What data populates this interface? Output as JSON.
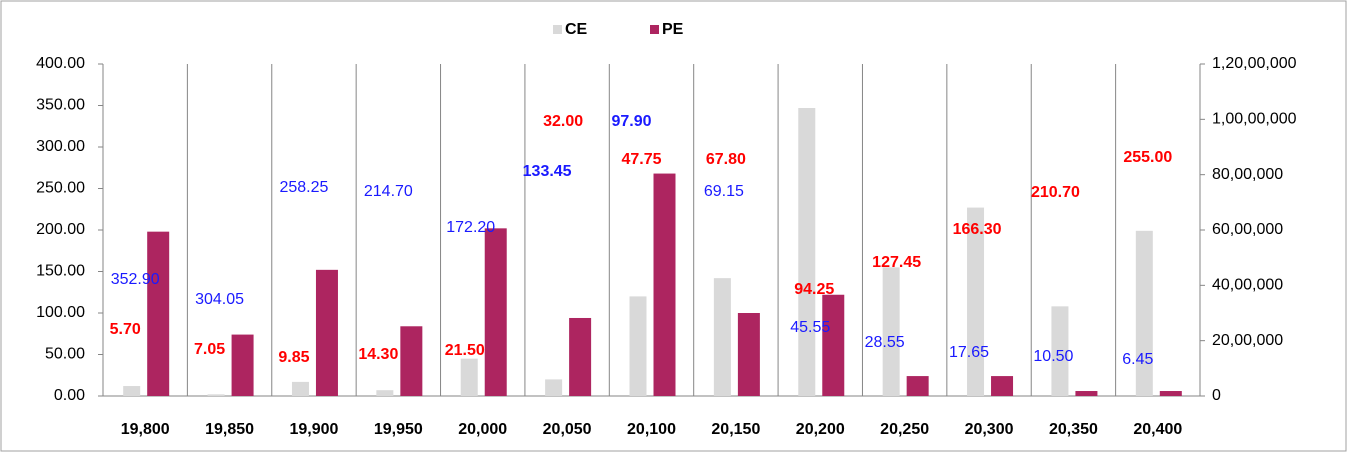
{
  "chart_data": {
    "type": "bar",
    "categories": [
      "19,800",
      "19,850",
      "19,900",
      "19,950",
      "20,000",
      "20,050",
      "20,100",
      "20,150",
      "20,200",
      "20,250",
      "20,300",
      "20,350",
      "20,400"
    ],
    "series": [
      {
        "name": "CE",
        "color": "#d9d9d9",
        "axis": "y2",
        "values": [
          360000,
          60000,
          510000,
          210000,
          1350000,
          600000,
          3600000,
          4260000,
          10410000,
          4650000,
          6810000,
          3240000,
          5970000
        ]
      },
      {
        "name": "PE",
        "color": "#ad2560",
        "axis": "y2",
        "values": [
          5940000,
          2220000,
          4560000,
          2520000,
          6060000,
          2820000,
          8040000,
          3000000,
          3660000,
          720000,
          720000,
          180000,
          180000
        ]
      }
    ],
    "premiums": [
      {
        "name": "CE",
        "color": "#1a1aff",
        "values": [
          352.9,
          304.05,
          258.25,
          214.7,
          172.2,
          133.45,
          97.9,
          69.15,
          45.55,
          28.55,
          17.65,
          10.5,
          6.45
        ],
        "value_labels": [
          "352.90",
          "304.05",
          "258.25",
          "214.70",
          "172.20",
          "133.45",
          "97.90",
          "69.15",
          "45.55",
          "28.55",
          "17.65",
          "10.50",
          "6.45"
        ]
      },
      {
        "name": "PE",
        "color": "#ff0000",
        "values": [
          5.7,
          7.05,
          9.85,
          14.3,
          21.5,
          32,
          47.75,
          67.8,
          94.25,
          127.45,
          166.3,
          210.7,
          255
        ],
        "value_labels": [
          "5.70",
          "7.05",
          "9.85",
          "14.30",
          "21.50",
          "32.00",
          "47.75",
          "67.80",
          "94.25",
          "127.45",
          "166.30",
          "210.70",
          "255.00"
        ]
      }
    ],
    "ylim": [
      0,
      400
    ],
    "yticks": [
      {
        "value": 0,
        "label": "0.00"
      },
      {
        "value": 50,
        "label": "50.00"
      },
      {
        "value": 100,
        "label": "100.00"
      },
      {
        "value": 150,
        "label": "150.00"
      },
      {
        "value": 200,
        "label": "200.00"
      },
      {
        "value": 250,
        "label": "250.00"
      },
      {
        "value": 300,
        "label": "300.00"
      },
      {
        "value": 350,
        "label": "350.00"
      },
      {
        "value": 400,
        "label": "400.00"
      }
    ],
    "y2lim": [
      0,
      12000000
    ],
    "y2ticks": [
      0,
      {
        "value": 2000000,
        "label": "20,00,000"
      },
      {
        "value": 4000000,
        "label": "40,00,000"
      },
      {
        "value": 6000000,
        "label": "60,00,000"
      },
      {
        "value": 8000000,
        "label": "80,00,000"
      },
      {
        "value": 10000000,
        "label": "1,00,00,000"
      },
      {
        "value": 12000000,
        "label": "1,20,00,000"
      }
    ],
    "legend": "top"
  }
}
